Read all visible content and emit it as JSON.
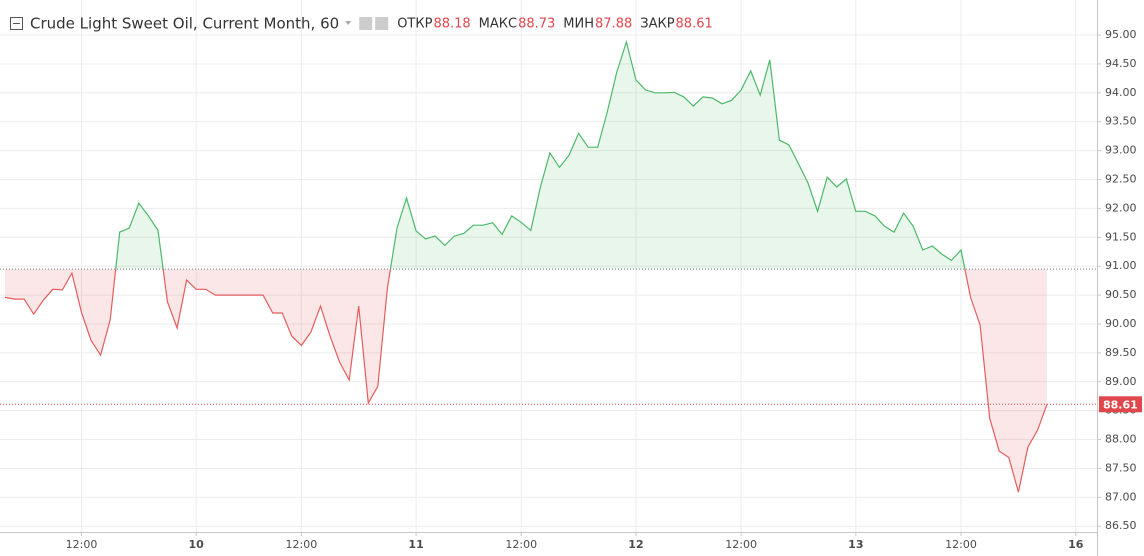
{
  "chart_data": {
    "type": "baseline",
    "title": "Crude Light Sweet Oil, Current Month, 60",
    "ohlc": {
      "labels": [
        "ОТКР",
        "МАКС",
        "МИН",
        "ЗАКР"
      ],
      "values": [
        88.18,
        88.73,
        87.88,
        88.61
      ]
    },
    "categories": [
      null,
      null,
      null,
      null,
      null,
      null,
      null,
      null,
      "12:00",
      null,
      null,
      null,
      null,
      null,
      null,
      null,
      null,
      null,
      null,
      null,
      "10",
      null,
      null,
      null,
      null,
      null,
      null,
      null,
      null,
      null,
      null,
      "12:00",
      null,
      null,
      null,
      null,
      null,
      null,
      null,
      null,
      null,
      null,
      null,
      "11",
      null,
      null,
      null,
      null,
      null,
      null,
      null,
      null,
      null,
      null,
      "12:00",
      null,
      null,
      null,
      null,
      null,
      null,
      null,
      null,
      null,
      null,
      null,
      "12",
      null,
      null,
      null,
      null,
      null,
      null,
      null,
      null,
      null,
      null,
      "12:00",
      null,
      null,
      null,
      null,
      null,
      null,
      null,
      null,
      null,
      null,
      null,
      "13",
      null,
      null,
      null,
      null,
      null,
      null,
      null,
      null,
      null,
      null,
      "12:00",
      null,
      null,
      null,
      null,
      null,
      null,
      null,
      null,
      null,
      null,
      null,
      "16"
    ],
    "series": [
      {
        "name": "Crude Light Sweet Oil",
        "color_above": "#4cb86a",
        "color_below": "#e35d5d",
        "values": [
          90.46,
          90.43,
          90.43,
          90.17,
          90.41,
          90.6,
          90.59,
          90.88,
          90.2,
          89.72,
          89.46,
          90.07,
          91.59,
          91.66,
          92.09,
          91.87,
          91.62,
          90.38,
          89.93,
          90.76,
          90.6,
          90.6,
          90.5,
          90.5,
          90.5,
          90.5,
          90.5,
          90.5,
          90.19,
          90.19,
          89.79,
          89.63,
          89.86,
          90.31,
          89.79,
          89.34,
          89.03,
          90.31,
          88.63,
          88.92,
          90.62,
          91.66,
          92.18,
          91.61,
          91.47,
          91.52,
          91.36,
          91.52,
          91.57,
          91.71,
          91.71,
          91.75,
          91.55,
          91.87,
          91.76,
          91.62,
          92.37,
          92.96,
          92.71,
          92.92,
          93.3,
          93.06,
          93.06,
          93.67,
          94.36,
          94.88,
          94.22,
          94.05,
          94.0,
          94.0,
          94.01,
          93.93,
          93.77,
          93.93,
          93.91,
          93.81,
          93.87,
          94.05,
          94.38,
          93.96,
          94.57,
          93.18,
          93.1,
          92.77,
          92.44,
          91.95,
          92.54,
          92.37,
          92.51,
          91.95,
          91.95,
          91.87,
          91.69,
          91.59,
          91.92,
          91.69,
          91.28,
          91.35,
          91.21,
          91.1,
          91.28,
          90.46,
          89.98,
          88.37,
          87.8,
          87.69,
          87.09,
          87.87,
          88.16,
          88.61,
          null,
          null,
          null
        ]
      }
    ],
    "baseline": 90.95,
    "ylim": [
      86.4,
      95.52
    ],
    "yticks": [
      {
        "value": 86.5,
        "label": "86.50"
      },
      {
        "value": 87,
        "label": "87.00"
      },
      {
        "value": 87.5,
        "label": "87.50"
      },
      {
        "value": 88,
        "label": "88.00"
      },
      {
        "value": 88.5,
        "label": "88.50"
      },
      {
        "value": 89,
        "label": "89.00"
      },
      {
        "value": 89.5,
        "label": "89.50"
      },
      {
        "value": 90,
        "label": "90.00"
      },
      {
        "value": 90.5,
        "label": "90.50"
      },
      {
        "value": 91,
        "label": "91.00"
      },
      {
        "value": 91.5,
        "label": "91.50"
      },
      {
        "value": 92,
        "label": "92.00"
      },
      {
        "value": 92.5,
        "label": "92.50"
      },
      {
        "value": 93,
        "label": "93.00"
      },
      {
        "value": 93.5,
        "label": "93.50"
      },
      {
        "value": 94,
        "label": "94.00"
      },
      {
        "value": 94.5,
        "label": "94.50"
      },
      {
        "value": 95,
        "label": "95.00"
      }
    ],
    "grid": true,
    "last_price_color": "#e0474c"
  }
}
